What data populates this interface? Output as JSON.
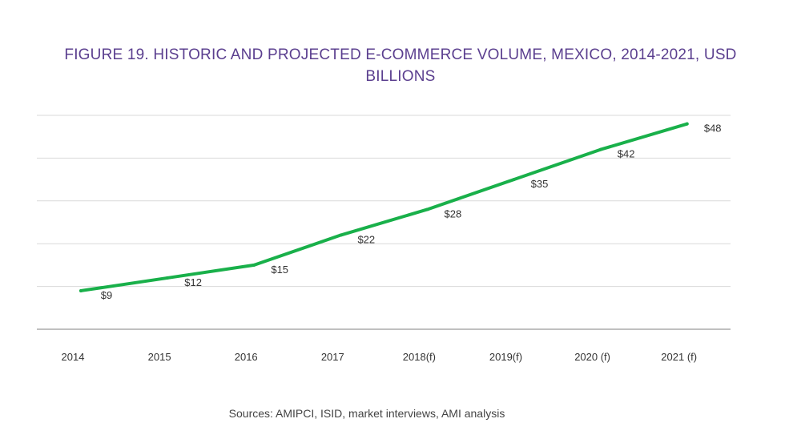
{
  "chart_data": {
    "type": "line",
    "title": "FIGURE 19. HISTORIC AND PROJECTED E-COMMERCE VOLUME, MEXICO, 2014-2021, USD BILLIONS",
    "categories": [
      "2014",
      "2015",
      "2016",
      "2017",
      "2018(f)",
      "2019(f)",
      "2020 (f)",
      "2021 (f)"
    ],
    "series": [
      {
        "values": [
          9,
          12,
          15,
          22,
          28,
          35,
          42,
          48
        ],
        "data_labels": [
          "$9",
          "$12",
          "$15",
          "$22",
          "$28",
          "$35",
          "$42",
          "$48"
        ]
      }
    ],
    "ylim": [
      0,
      50
    ],
    "y_axis_labels_shown": false,
    "grid": true,
    "legend": "none",
    "line_color": "#19b04a",
    "source": "Sources: AMIPCI, ISID, market interviews, AMI analysis"
  }
}
